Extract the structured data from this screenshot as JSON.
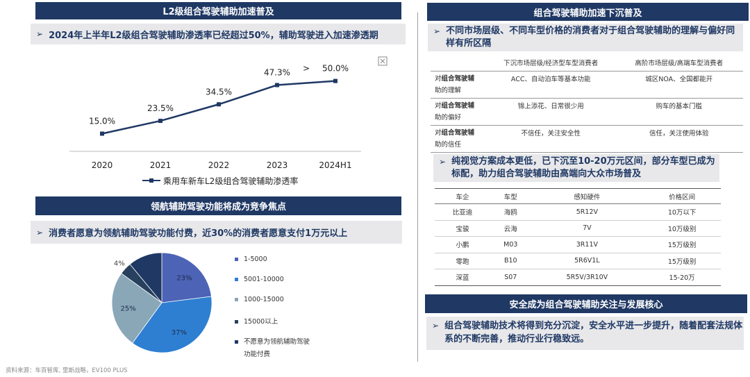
{
  "left": {
    "top_header": "L2级组合驾驶辅助加速普及",
    "top_subheader": "2024年上半年L2级组合驾驶辅助渗透率已经超过50%，辅助驾驶进入加速渗透期",
    "arrow_glyph": "➢",
    "gt_symbol": ">",
    "legend_label": "乘用车新车L2级组合驾驶辅助渗透率",
    "bottom_header": "领航辅助驾驶功能将成为竞争焦点",
    "bottom_subheader": "消费者愿意为领航辅助驾驶功能付费，近30%的消费者愿意支付1万元以上",
    "source": "资料来源：车百智库, 里斯战略，EV100 PLUS"
  },
  "chart_data": [
    {
      "type": "line",
      "x": [
        "2020",
        "2021",
        "2022",
        "2023",
        "2024H1"
      ],
      "series": [
        {
          "name": "乘用车新车L2级组合驾驶辅助渗透率",
          "values": [
            15.0,
            23.5,
            34.5,
            47.3,
            50.0
          ]
        }
      ],
      "data_labels": [
        "15.0%",
        "23.5%",
        "34.5%",
        "47.3%",
        "50.0%"
      ],
      "ylim": [
        0,
        60
      ],
      "color": "#1f3864",
      "grid": false
    },
    {
      "type": "pie",
      "categories": [
        "1-5000",
        "5001-10000",
        "1000-15000",
        "15000以上",
        "不愿意为领航辅助驾驶功能付费"
      ],
      "values": [
        23,
        37,
        25,
        4,
        11
      ],
      "data_labels": [
        "23%",
        "37%",
        "25%",
        "4%",
        ""
      ],
      "colors": [
        "#4c63b6",
        "#2e7fd2",
        "#8aa7b8",
        "#27405e",
        "#1f3864"
      ],
      "legend_position": "right"
    }
  ],
  "right": {
    "header1": "组合驾驶辅助加速下沉普及",
    "sub1": "不同市场层级、不同车型价格的消费者对于组合驾驶辅助的理解与偏好同样有所区隔",
    "table1": {
      "headers": [
        "下沉市场层级/经济型车型消费者",
        "高阶市场层级/高端车型消费者"
      ],
      "rows": [
        {
          "prefix": "对",
          "bold": "组合驾驶辅",
          "rest": "助的理解",
          "c1": "ACC、自动泊车等基本功能",
          "c2": "城区NOA、全国都能开"
        },
        {
          "prefix": "对",
          "bold": "组合驾驶辅",
          "rest": "助的偏好",
          "c1": "锦上添花、日常很少用",
          "c2": "购车的基本门槛"
        },
        {
          "prefix": "对",
          "bold": "组合驾驶辅",
          "rest": "助的信任",
          "c1": "不信任，关注安全性",
          "c2": "信任，关注使用体验"
        }
      ]
    },
    "sub2": "纯视觉方案成本更低，已下沉至10-20万元区间，部分车型已成为标配，助力组合驾驶辅助由高端向大众市场普及",
    "table2": {
      "headers": [
        "车企",
        "车型",
        "感知硬件",
        "价格区间"
      ],
      "rows": [
        [
          "比亚迪",
          "海鸥",
          "5R12V",
          "10万以下"
        ],
        [
          "宝骏",
          "云海",
          "7V",
          "10万级别"
        ],
        [
          "小鹏",
          "M03",
          "3R11V",
          "15万级别"
        ],
        [
          "零跑",
          "B10",
          "5R6V1L",
          "15万级别"
        ],
        [
          "深蓝",
          "S07",
          "5R5V/3R10V",
          "15-20万"
        ]
      ]
    },
    "header2": "安全成为组合驾驶辅助关注与发展核心",
    "sub3": "组合驾驶辅助技术将得到充分沉淀，安全水平进一步提升，随着配套法规体系的不断完善，推动行业行稳致远。"
  }
}
